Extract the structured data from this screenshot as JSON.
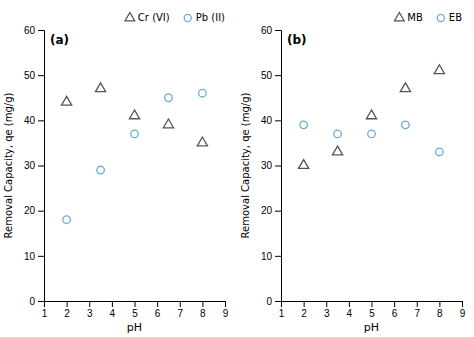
{
  "chart_data": [
    {
      "type": "scatter",
      "title": "(a)",
      "xlabel": "pH",
      "ylabel": "Removal Capacity, qe (mg/g)",
      "xlim": [
        1,
        9
      ],
      "ylim": [
        0,
        60
      ],
      "xticks": [
        1,
        2,
        3,
        4,
        5,
        6,
        7,
        8,
        9
      ],
      "yticks": [
        0,
        10,
        20,
        30,
        40,
        50,
        60
      ],
      "grid": false,
      "legend": "upper right",
      "series": [
        {
          "name": "Cr (VI)",
          "color": "#555555",
          "marker": "triangle",
          "x": [
            2,
            3.5,
            5,
            6.5,
            8
          ],
          "values": [
            44,
            47,
            41,
            39,
            35
          ]
        },
        {
          "name": "Pb (II)",
          "color": "#6baed6",
          "marker": "circle",
          "x": [
            2,
            3.5,
            5,
            6.5,
            8
          ],
          "values": [
            18,
            29,
            37,
            45,
            46
          ]
        }
      ]
    },
    {
      "type": "scatter",
      "title": "(b)",
      "xlabel": "pH",
      "ylabel": "Removal Capacity, qe (mg/g)",
      "xlim": [
        1,
        9
      ],
      "ylim": [
        0,
        60
      ],
      "xticks": [
        1,
        2,
        3,
        4,
        5,
        6,
        7,
        8,
        9
      ],
      "yticks": [
        0,
        10,
        20,
        30,
        40,
        50,
        60
      ],
      "grid": false,
      "legend": "upper right",
      "series": [
        {
          "name": "MB",
          "color": "#555555",
          "marker": "triangle",
          "x": [
            2,
            3.5,
            5,
            6.5,
            8
          ],
          "values": [
            30,
            33,
            41,
            47,
            51
          ]
        },
        {
          "name": "EB",
          "color": "#6baed6",
          "marker": "circle",
          "x": [
            2,
            3.5,
            5,
            6.5,
            8
          ],
          "values": [
            39,
            37,
            37,
            39,
            33
          ]
        }
      ]
    }
  ]
}
